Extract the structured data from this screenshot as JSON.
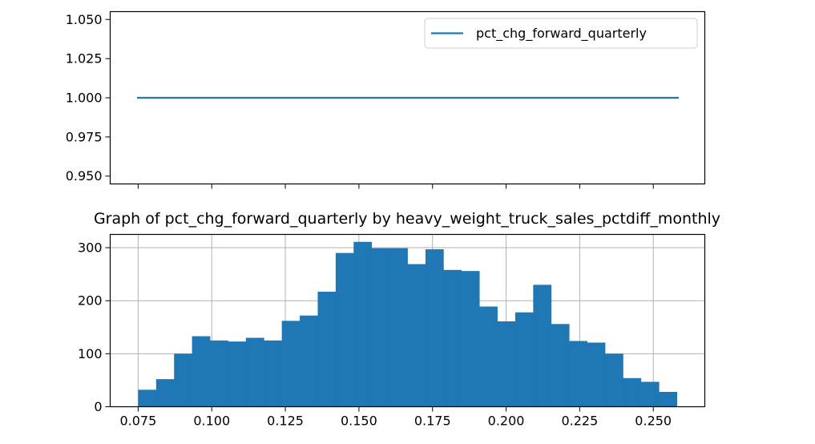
{
  "colors": {
    "series": "#1f77b4",
    "axis": "#000000",
    "grid": "#b0b0b0",
    "legend_border": "#cccccc"
  },
  "chart_data": [
    {
      "type": "line",
      "title": "",
      "xlabel": "",
      "ylabel": "",
      "ylim": [
        0.945,
        1.055
      ],
      "y_ticks": [
        "0.950",
        "0.975",
        "1.000",
        "1.025",
        "1.050"
      ],
      "x_tick_count": 8,
      "x_tick_labels_visible": false,
      "grid": false,
      "legend_placement": "upper-right",
      "series": [
        {
          "name": "pct_chg_forward_quarterly",
          "x": [
            0,
            1
          ],
          "y": [
            1.0,
            1.0
          ]
        }
      ]
    },
    {
      "type": "bar",
      "subtype": "histogram",
      "title": "Graph of pct_chg_forward_quarterly by heavy_weight_truck_sales_pctdiff_monthly",
      "xlabel": "",
      "ylabel": "",
      "xlim": [
        0.0655,
        0.2675
      ],
      "ylim": [
        0,
        325
      ],
      "x_ticks": [
        "0.075",
        "0.100",
        "0.125",
        "0.150",
        "0.175",
        "0.200",
        "0.225",
        "0.250"
      ],
      "y_ticks": [
        "0",
        "100",
        "200",
        "300"
      ],
      "grid": true,
      "bin_start": 0.075,
      "bin_width": 0.0061,
      "values": [
        32,
        52,
        100,
        133,
        125,
        123,
        130,
        125,
        162,
        172,
        217,
        290,
        311,
        299,
        299,
        269,
        297,
        258,
        256,
        189,
        161,
        178,
        230,
        156,
        124,
        121,
        100,
        54,
        47,
        28
      ]
    }
  ]
}
